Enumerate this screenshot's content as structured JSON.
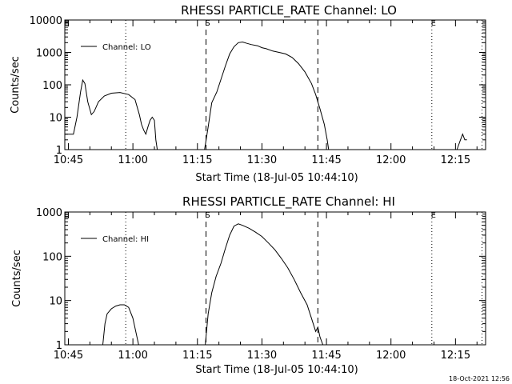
{
  "timestamp": "18-Oct-2021 12:56",
  "chart_data": [
    {
      "type": "line",
      "title": "RHESSI PARTICLE_RATE Channel: LO",
      "xlabel": "Start Time (18-Jul-05 10:44:10)",
      "ylabel": "Counts/sec",
      "yscale": "log",
      "ylim": [
        1,
        10000
      ],
      "yticks": [
        1,
        10,
        100,
        1000,
        10000
      ],
      "ytick_labels": [
        "1",
        "10",
        "100",
        "1000",
        "10000"
      ],
      "xlim": [
        "10:44:10",
        "12:22:00"
      ],
      "xtick_labels": [
        "10:45",
        "11:00",
        "11:15",
        "11:30",
        "11:45",
        "12:00",
        "12:15"
      ],
      "legend": {
        "label": "Channel: LO",
        "placement": "top-left"
      },
      "markers": [
        {
          "label": "E",
          "time": "10:44:10",
          "style": "dotted"
        },
        {
          "label": "",
          "time": "10:58:20",
          "style": "dotted"
        },
        {
          "label": "S",
          "time": "11:17:00",
          "style": "dashed"
        },
        {
          "label": "",
          "time": "11:43:00",
          "style": "dashed"
        },
        {
          "label": "E",
          "time": "12:09:30",
          "style": "dotted"
        },
        {
          "label": "",
          "time": "12:21:10",
          "style": "dotted"
        }
      ],
      "series": [
        {
          "name": "Channel: LO",
          "segments": [
            [
              [
                "10:44:10",
                3
              ],
              [
                "10:46:10",
                3
              ],
              [
                "10:47:00",
                10
              ],
              [
                "10:47:50",
                60
              ],
              [
                "10:48:20",
                140
              ],
              [
                "10:48:50",
                110
              ],
              [
                "10:49:30",
                30
              ],
              [
                "10:50:20",
                12
              ],
              [
                "10:51:00",
                15
              ],
              [
                "10:52:00",
                30
              ],
              [
                "10:53:20",
                45
              ],
              [
                "10:55:00",
                55
              ],
              [
                "10:57:00",
                58
              ],
              [
                "10:59:00",
                50
              ],
              [
                "11:00:30",
                35
              ],
              [
                "11:01:30",
                12
              ],
              [
                "11:02:00",
                6
              ],
              [
                "11:02:30",
                4
              ],
              [
                "11:03:00",
                3
              ],
              [
                "11:03:30",
                5
              ],
              [
                "11:04:00",
                8
              ],
              [
                "11:04:30",
                10
              ],
              [
                "11:05:00",
                8
              ],
              [
                "11:05:20",
                2
              ],
              [
                "11:05:40",
                1
              ]
            ],
            [
              [
                "11:16:40",
                1
              ],
              [
                "11:17:30",
                5
              ],
              [
                "11:18:20",
                28
              ],
              [
                "11:19:30",
                60
              ],
              [
                "11:20:30",
                150
              ],
              [
                "11:21:30",
                380
              ],
              [
                "11:22:30",
                900
              ],
              [
                "11:23:30",
                1500
              ],
              [
                "11:24:30",
                2000
              ],
              [
                "11:25:30",
                2100
              ],
              [
                "11:26:30",
                1900
              ],
              [
                "11:27:30",
                1750
              ],
              [
                "11:29:00",
                1600
              ],
              [
                "11:30:00",
                1400
              ],
              [
                "11:31:00",
                1300
              ],
              [
                "11:32:30",
                1100
              ],
              [
                "11:34:00",
                1000
              ],
              [
                "11:35:30",
                900
              ],
              [
                "11:37:00",
                700
              ],
              [
                "11:38:30",
                450
              ],
              [
                "11:40:00",
                250
              ],
              [
                "11:41:30",
                110
              ],
              [
                "11:42:30",
                50
              ],
              [
                "11:43:30",
                18
              ],
              [
                "11:44:30",
                6
              ],
              [
                "11:45:10",
                2
              ],
              [
                "11:45:30",
                1
              ]
            ],
            [
              [
                "12:15:20",
                1
              ],
              [
                "12:16:10",
                2
              ],
              [
                "12:16:40",
                3
              ],
              [
                "12:17:10",
                2
              ],
              [
                "12:17:40",
                2
              ]
            ]
          ]
        }
      ]
    },
    {
      "type": "line",
      "title": "RHESSI PARTICLE_RATE Channel: HI",
      "xlabel": "Start Time (18-Jul-05 10:44:10)",
      "ylabel": "Counts/sec",
      "yscale": "log",
      "ylim": [
        1,
        1000
      ],
      "yticks": [
        1,
        10,
        100,
        1000
      ],
      "ytick_labels": [
        "1",
        "10",
        "100",
        "1000"
      ],
      "xlim": [
        "10:44:10",
        "12:22:00"
      ],
      "xtick_labels": [
        "10:45",
        "11:00",
        "11:15",
        "11:30",
        "11:45",
        "12:00",
        "12:15"
      ],
      "legend": {
        "label": "Channel: HI",
        "placement": "top-left"
      },
      "markers": [
        {
          "label": "E",
          "time": "10:44:10",
          "style": "dotted"
        },
        {
          "label": "",
          "time": "10:58:20",
          "style": "dotted"
        },
        {
          "label": "S",
          "time": "11:17:00",
          "style": "dashed"
        },
        {
          "label": "",
          "time": "11:43:00",
          "style": "dashed"
        },
        {
          "label": "E",
          "time": "12:09:30",
          "style": "dotted"
        },
        {
          "label": "",
          "time": "12:21:10",
          "style": "dotted"
        }
      ],
      "series": [
        {
          "name": "Channel: HI",
          "segments": [
            [
              [
                "10:53:00",
                1
              ],
              [
                "10:53:30",
                3
              ],
              [
                "10:54:00",
                5
              ],
              [
                "10:55:00",
                6.5
              ],
              [
                "10:56:00",
                7.5
              ],
              [
                "10:57:00",
                8
              ],
              [
                "10:58:00",
                8
              ],
              [
                "10:59:00",
                7
              ],
              [
                "11:00:00",
                4
              ],
              [
                "11:00:40",
                2
              ],
              [
                "11:01:20",
                1
              ]
            ],
            [
              [
                "11:16:50",
                1
              ],
              [
                "11:17:30",
                5
              ],
              [
                "11:18:20",
                15
              ],
              [
                "11:19:20",
                35
              ],
              [
                "11:20:30",
                70
              ],
              [
                "11:21:30",
                150
              ],
              [
                "11:22:30",
                300
              ],
              [
                "11:23:30",
                480
              ],
              [
                "11:24:30",
                540
              ],
              [
                "11:25:30",
                500
              ],
              [
                "11:27:00",
                430
              ],
              [
                "11:28:30",
                350
              ],
              [
                "11:30:00",
                280
              ],
              [
                "11:31:30",
                200
              ],
              [
                "11:33:00",
                140
              ],
              [
                "11:34:30",
                90
              ],
              [
                "11:36:00",
                55
              ],
              [
                "11:37:30",
                30
              ],
              [
                "11:39:00",
                15
              ],
              [
                "11:40:30",
                8
              ],
              [
                "11:41:30",
                4
              ],
              [
                "11:42:30",
                2
              ],
              [
                "11:43:00",
                2.5
              ],
              [
                "11:43:30",
                1.5
              ],
              [
                "11:44:10",
                1
              ]
            ]
          ]
        }
      ]
    }
  ]
}
